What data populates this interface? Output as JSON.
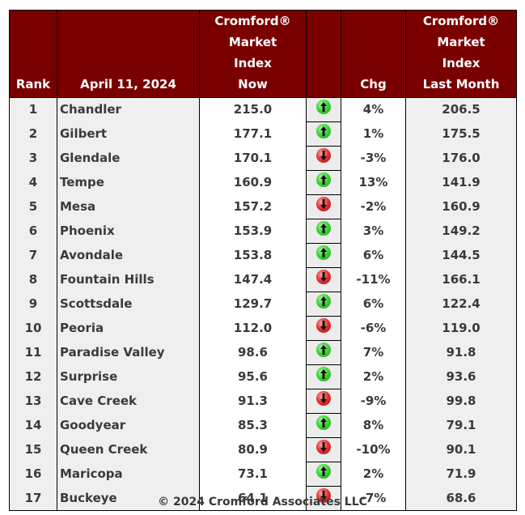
{
  "table": {
    "headers": {
      "rank": "Rank",
      "date": "April 11, 2024",
      "now": [
        "Cromford®",
        "Market",
        "Index",
        "Now"
      ],
      "arrow": "",
      "chg": "Chg",
      "last_month": [
        "Cromford®",
        "Market",
        "Index",
        "Last Month"
      ]
    },
    "colors": {
      "header_bg": "#7a0000",
      "header_text": "#ffffff",
      "up_icon": "#3fd43a",
      "down_icon": "#e63434"
    },
    "rows": [
      {
        "rank": "1",
        "city": "Chandler",
        "now": "215.0",
        "direction": "up",
        "chg": "4%",
        "last_month": "206.5"
      },
      {
        "rank": "2",
        "city": "Gilbert",
        "now": "177.1",
        "direction": "up",
        "chg": "1%",
        "last_month": "175.5"
      },
      {
        "rank": "3",
        "city": "Glendale",
        "now": "170.1",
        "direction": "down",
        "chg": "-3%",
        "last_month": "176.0"
      },
      {
        "rank": "4",
        "city": "Tempe",
        "now": "160.9",
        "direction": "up",
        "chg": "13%",
        "last_month": "141.9"
      },
      {
        "rank": "5",
        "city": "Mesa",
        "now": "157.2",
        "direction": "down",
        "chg": "-2%",
        "last_month": "160.9"
      },
      {
        "rank": "6",
        "city": "Phoenix",
        "now": "153.9",
        "direction": "up",
        "chg": "3%",
        "last_month": "149.2"
      },
      {
        "rank": "7",
        "city": "Avondale",
        "now": "153.8",
        "direction": "up",
        "chg": "6%",
        "last_month": "144.5"
      },
      {
        "rank": "8",
        "city": "Fountain Hills",
        "now": "147.4",
        "direction": "down",
        "chg": "-11%",
        "last_month": "166.1"
      },
      {
        "rank": "9",
        "city": "Scottsdale",
        "now": "129.7",
        "direction": "up",
        "chg": "6%",
        "last_month": "122.4"
      },
      {
        "rank": "10",
        "city": "Peoria",
        "now": "112.0",
        "direction": "down",
        "chg": "-6%",
        "last_month": "119.0"
      },
      {
        "rank": "11",
        "city": "Paradise Valley",
        "now": "98.6",
        "direction": "up",
        "chg": "7%",
        "last_month": "91.8"
      },
      {
        "rank": "12",
        "city": "Surprise",
        "now": "95.6",
        "direction": "up",
        "chg": "2%",
        "last_month": "93.6"
      },
      {
        "rank": "13",
        "city": "Cave Creek",
        "now": "91.3",
        "direction": "down",
        "chg": "-9%",
        "last_month": "99.8"
      },
      {
        "rank": "14",
        "city": "Goodyear",
        "now": "85.3",
        "direction": "up",
        "chg": "8%",
        "last_month": "79.1"
      },
      {
        "rank": "15",
        "city": "Queen Creek",
        "now": "80.9",
        "direction": "down",
        "chg": "-10%",
        "last_month": "90.1"
      },
      {
        "rank": "16",
        "city": "Maricopa",
        "now": "73.1",
        "direction": "up",
        "chg": "2%",
        "last_month": "71.9"
      },
      {
        "rank": "17",
        "city": "Buckeye",
        "now": "64.1",
        "direction": "down",
        "chg": "-7%",
        "last_month": "68.6"
      }
    ]
  },
  "footer": {
    "copyright": "© 2024 Cromford Associates LLC"
  }
}
